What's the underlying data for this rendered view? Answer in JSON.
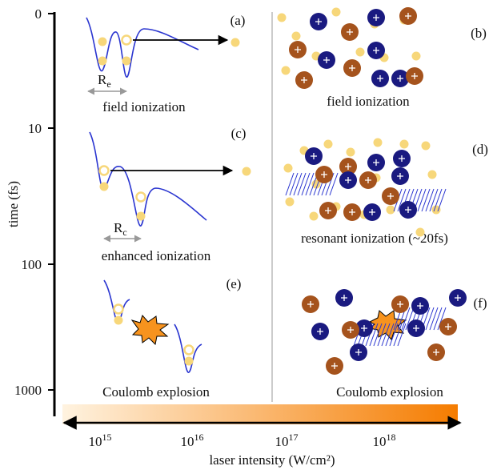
{
  "y_axis": {
    "label": "time (fs)",
    "ticks": [
      "0",
      "10",
      "100",
      "1000"
    ]
  },
  "x_axis": {
    "label": "laser intensity (W/cm²)",
    "ticks": [
      {
        "base": "10",
        "exp": "15"
      },
      {
        "base": "10",
        "exp": "16"
      },
      {
        "base": "10",
        "exp": "17"
      },
      {
        "base": "10",
        "exp": "18"
      }
    ]
  },
  "panels": [
    {
      "letter": "(a)",
      "caption": "field ionization",
      "distance": {
        "base": "R",
        "sub": "e"
      }
    },
    {
      "letter": "(b)",
      "caption": "field ionization"
    },
    {
      "letter": "(c)",
      "caption": "enhanced ionization",
      "distance": {
        "base": "R",
        "sub": "c"
      }
    },
    {
      "letter": "(d)",
      "caption": "resonant ionization (~20fs)"
    },
    {
      "letter": "(e)",
      "caption": "Coulomb explosion"
    },
    {
      "letter": "(f)",
      "caption": "Coulomb explosion"
    }
  ]
}
